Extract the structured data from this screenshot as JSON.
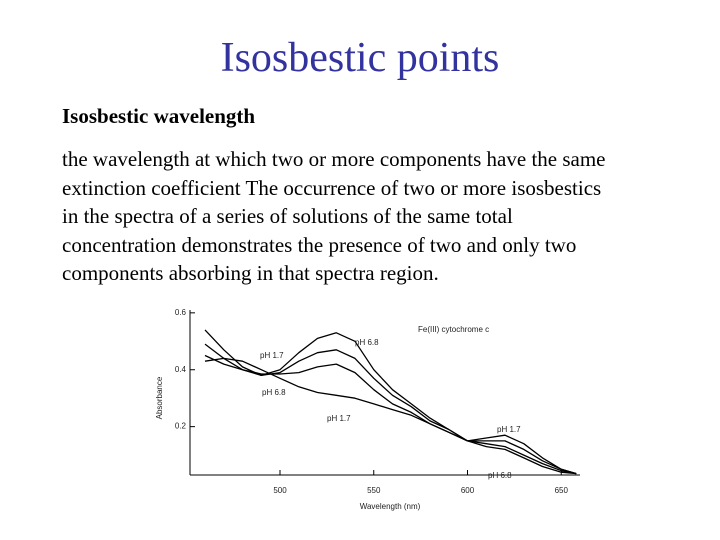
{
  "slide": {
    "title": "Isosbestic points",
    "heading": "Isosbestic wavelength",
    "body_lines": [
      "the wavelength at which two or more components have the same",
      "extinction coefficient The occurrence of two or more isosbestics",
      "in the spectra of a series of solutions of the same total",
      "concentration demonstrates the presence of two and only two",
      "components absorbing in that spectra region."
    ]
  },
  "chart_data": {
    "type": "line",
    "xlabel": "Wavelength (nm)",
    "ylabel": "Absorbance",
    "x": [
      460,
      470,
      480,
      490,
      500,
      510,
      520,
      530,
      540,
      550,
      560,
      570,
      580,
      590,
      600,
      610,
      620,
      630,
      640,
      650,
      658
    ],
    "series": [
      {
        "color": "#000000",
        "values": [
          0.54,
          0.47,
          0.41,
          0.38,
          0.4,
          0.46,
          0.51,
          0.53,
          0.5,
          0.4,
          0.33,
          0.28,
          0.23,
          0.19,
          0.15,
          0.13,
          0.12,
          0.09,
          0.06,
          0.04,
          0.035
        ]
      },
      {
        "color": "#000000",
        "values": [
          0.49,
          0.44,
          0.4,
          0.38,
          0.39,
          0.43,
          0.46,
          0.47,
          0.44,
          0.37,
          0.31,
          0.27,
          0.22,
          0.19,
          0.15,
          0.14,
          0.13,
          0.1,
          0.07,
          0.045,
          0.035
        ]
      },
      {
        "color": "#000000",
        "values": [
          0.45,
          0.42,
          0.4,
          0.385,
          0.385,
          0.39,
          0.41,
          0.42,
          0.39,
          0.33,
          0.28,
          0.25,
          0.21,
          0.18,
          0.15,
          0.15,
          0.15,
          0.12,
          0.08,
          0.05,
          0.035
        ]
      },
      {
        "color": "#000000",
        "values": [
          0.43,
          0.44,
          0.43,
          0.4,
          0.37,
          0.34,
          0.32,
          0.31,
          0.3,
          0.28,
          0.26,
          0.24,
          0.21,
          0.18,
          0.15,
          0.16,
          0.17,
          0.14,
          0.09,
          0.05,
          0.035
        ]
      }
    ],
    "annotations": [
      "Fe(III) cytochrome c",
      "pH 6.8",
      "pH 1.7",
      "pH 6.8",
      "pH 1.7",
      "pH 1.7",
      "pH 6.8"
    ],
    "xlim": [
      452,
      660
    ],
    "xticks": [
      500,
      550,
      600,
      650
    ],
    "ylim": [
      0.03,
      0.61
    ],
    "yticks": [
      0.2,
      0.4,
      0.6
    ]
  }
}
